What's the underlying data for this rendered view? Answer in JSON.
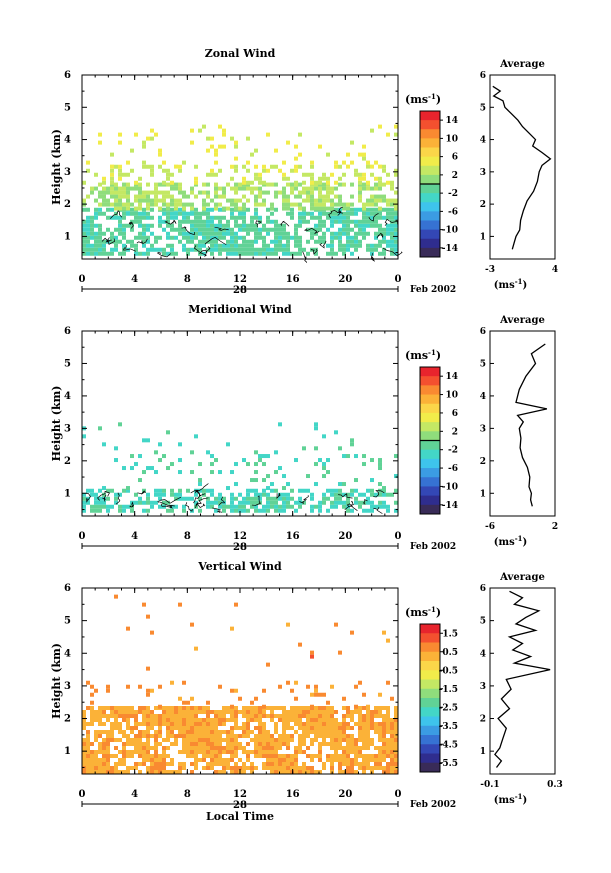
{
  "chart_data": [
    {
      "type": "heatmap",
      "title": "Zonal Wind",
      "ylabel": "Height (km)",
      "xlabel": "",
      "xlim": [
        0,
        24
      ],
      "ylim": [
        0.3,
        6
      ],
      "x_ticks": [
        "0",
        "4",
        "8",
        "12",
        "16",
        "20",
        "0"
      ],
      "y_ticks": [
        "1",
        "2",
        "3",
        "4",
        "5",
        "6"
      ],
      "date_day": "28",
      "date_label": "Feb 2002",
      "colorbar": {
        "unit": "(ms",
        "unit_exp": "-1",
        "unit_close": ")",
        "tick_values": [
          14,
          10,
          6,
          2,
          -2,
          -6,
          -10,
          -14
        ],
        "tick_labels": [
          "14",
          "10",
          "6",
          "2",
          "-2",
          "-6",
          "-10",
          "-14"
        ],
        "range": [
          -16,
          16
        ],
        "highlight": 0
      },
      "field": {
        "base": 0.5,
        "layers": [
          {
            "from": 0.4,
            "to": 1.8,
            "value": -1.5,
            "density": 0.82
          },
          {
            "from": 1.8,
            "to": 2.6,
            "value": 2,
            "density": 0.68
          },
          {
            "from": 2.6,
            "to": 3.1,
            "value": 3.5,
            "density": 0.32
          },
          {
            "from": 3.1,
            "to": 4.4,
            "value": 4.5,
            "density": 0.1
          }
        ],
        "contour_below": 1.6
      },
      "average": {
        "title": "Average",
        "xlim": [
          -3,
          4
        ],
        "x_ticks": [
          "-3",
          "4"
        ],
        "unit": "(ms",
        "unit_exp": "-1",
        "unit_close": ")",
        "profile": [
          {
            "h": 0.6,
            "v": -0.6
          },
          {
            "h": 0.8,
            "v": -0.4
          },
          {
            "h": 1.0,
            "v": -0.2
          },
          {
            "h": 1.2,
            "v": 0.2
          },
          {
            "h": 1.5,
            "v": 0.3
          },
          {
            "h": 1.8,
            "v": 0.6
          },
          {
            "h": 2.1,
            "v": 1.0
          },
          {
            "h": 2.4,
            "v": 1.7
          },
          {
            "h": 2.7,
            "v": 2.1
          },
          {
            "h": 3.0,
            "v": 2.3
          },
          {
            "h": 3.2,
            "v": 2.6
          },
          {
            "h": 3.4,
            "v": 3.5
          },
          {
            "h": 3.6,
            "v": 2.6
          },
          {
            "h": 3.8,
            "v": 1.6
          },
          {
            "h": 4.0,
            "v": 1.9
          },
          {
            "h": 4.2,
            "v": 1.2
          },
          {
            "h": 4.4,
            "v": 0.5
          },
          {
            "h": 4.6,
            "v": 0.0
          },
          {
            "h": 4.8,
            "v": -0.7
          },
          {
            "h": 5.0,
            "v": -1.4
          },
          {
            "h": 5.2,
            "v": -1.6
          },
          {
            "h": 5.35,
            "v": -2.6
          },
          {
            "h": 5.5,
            "v": -1.9
          },
          {
            "h": 5.65,
            "v": -2.7
          }
        ]
      }
    },
    {
      "type": "heatmap",
      "title": "Meridional Wind",
      "ylabel": "Height (km)",
      "xlabel": "",
      "xlim": [
        0,
        24
      ],
      "ylim": [
        0.3,
        6
      ],
      "x_ticks": [
        "0",
        "4",
        "8",
        "12",
        "16",
        "20",
        "0"
      ],
      "y_ticks": [
        "1",
        "2",
        "3",
        "4",
        "5",
        "6"
      ],
      "date_day": "28",
      "date_label": "Feb 2002",
      "colorbar": {
        "unit": "(ms",
        "unit_exp": "-1",
        "unit_close": ")",
        "tick_values": [
          14,
          10,
          6,
          2,
          -2,
          -6,
          -10,
          -14
        ],
        "tick_labels": [
          "14",
          "10",
          "6",
          "2",
          "-2",
          "-6",
          "-10",
          "-14"
        ],
        "range": [
          -16,
          16
        ],
        "highlight": 0
      },
      "field": {
        "base": 0.4,
        "layers": [
          {
            "from": 0.4,
            "to": 1.1,
            "value": -2.2,
            "density": 0.62
          },
          {
            "from": 1.1,
            "to": 2.2,
            "value": -1.8,
            "density": 0.12
          },
          {
            "from": 2.2,
            "to": 3.1,
            "value": -2.4,
            "density": 0.04
          }
        ],
        "contour_below": 1.0
      },
      "average": {
        "title": "Average",
        "xlim": [
          -6,
          2
        ],
        "x_ticks": [
          "-6",
          "2"
        ],
        "unit": "(ms",
        "unit_exp": "-1",
        "unit_close": ")",
        "profile": [
          {
            "h": 0.6,
            "v": -0.8
          },
          {
            "h": 0.8,
            "v": -1.0
          },
          {
            "h": 1.0,
            "v": -0.9
          },
          {
            "h": 1.2,
            "v": -1.2
          },
          {
            "h": 1.5,
            "v": -1.1
          },
          {
            "h": 1.8,
            "v": -1.4
          },
          {
            "h": 2.1,
            "v": -2.0
          },
          {
            "h": 2.4,
            "v": -2.3
          },
          {
            "h": 2.7,
            "v": -2.2
          },
          {
            "h": 3.0,
            "v": -2.4
          },
          {
            "h": 3.2,
            "v": -1.9
          },
          {
            "h": 3.4,
            "v": -2.6
          },
          {
            "h": 3.6,
            "v": 1.0
          },
          {
            "h": 3.8,
            "v": -2.8
          },
          {
            "h": 4.2,
            "v": -2.4
          },
          {
            "h": 4.6,
            "v": -1.6
          },
          {
            "h": 5.0,
            "v": -0.4
          },
          {
            "h": 5.3,
            "v": -0.9
          },
          {
            "h": 5.6,
            "v": 0.8
          }
        ]
      }
    },
    {
      "type": "heatmap",
      "title": "Vertical Wind",
      "ylabel": "Height (km)",
      "xlabel": "Local Time",
      "xlim": [
        0,
        24
      ],
      "ylim": [
        0.3,
        6
      ],
      "x_ticks": [
        "0",
        "4",
        "8",
        "12",
        "16",
        "20",
        "0"
      ],
      "y_ticks": [
        "1",
        "2",
        "3",
        "4",
        "5",
        "6"
      ],
      "date_day": "28",
      "date_label": "Feb 2002",
      "colorbar": {
        "unit": "(ms",
        "unit_exp": "-1",
        "unit_close": ")",
        "tick_values": [
          1.5,
          0.5,
          -0.5,
          -1.5,
          -2.5,
          -3.5,
          -4.5,
          -5.5
        ],
        "tick_labels": [
          "1.5",
          "0.5",
          "-0.5",
          "-1.5",
          "-2.5",
          "-3.5",
          "-4.5",
          "-5.5"
        ],
        "range": [
          -6,
          2
        ],
        "highlight": null
      },
      "field": {
        "base": 0.3,
        "layers": [
          {
            "from": 0.3,
            "to": 2.3,
            "value": 0.35,
            "density": 0.9
          },
          {
            "from": 2.3,
            "to": 3.1,
            "value": 0.6,
            "density": 0.12
          },
          {
            "from": 3.1,
            "to": 5.8,
            "value": 0.7,
            "density": 0.01
          }
        ],
        "contour_below": null
      },
      "average": {
        "title": "Average",
        "xlim": [
          -0.1,
          0.3
        ],
        "x_ticks": [
          "-0.1",
          "0.3"
        ],
        "unit": "(ms",
        "unit_exp": "-1",
        "unit_close": ")",
        "profile": [
          {
            "h": 0.5,
            "v": -0.06
          },
          {
            "h": 0.7,
            "v": -0.03
          },
          {
            "h": 0.9,
            "v": -0.07
          },
          {
            "h": 1.1,
            "v": -0.04
          },
          {
            "h": 1.4,
            "v": -0.02
          },
          {
            "h": 1.7,
            "v": 0.0
          },
          {
            "h": 2.0,
            "v": -0.05
          },
          {
            "h": 2.3,
            "v": 0.02
          },
          {
            "h": 2.6,
            "v": -0.03
          },
          {
            "h": 2.9,
            "v": 0.03
          },
          {
            "h": 3.2,
            "v": 0.0
          },
          {
            "h": 3.5,
            "v": 0.27
          },
          {
            "h": 3.7,
            "v": 0.05
          },
          {
            "h": 3.9,
            "v": 0.15
          },
          {
            "h": 4.1,
            "v": 0.04
          },
          {
            "h": 4.3,
            "v": 0.1
          },
          {
            "h": 4.5,
            "v": 0.02
          },
          {
            "h": 4.7,
            "v": 0.18
          },
          {
            "h": 4.9,
            "v": 0.06
          },
          {
            "h": 5.1,
            "v": 0.12
          },
          {
            "h": 5.3,
            "v": 0.2
          },
          {
            "h": 5.5,
            "v": 0.05
          },
          {
            "h": 5.7,
            "v": 0.1
          },
          {
            "h": 5.9,
            "v": 0.02
          }
        ]
      }
    }
  ]
}
